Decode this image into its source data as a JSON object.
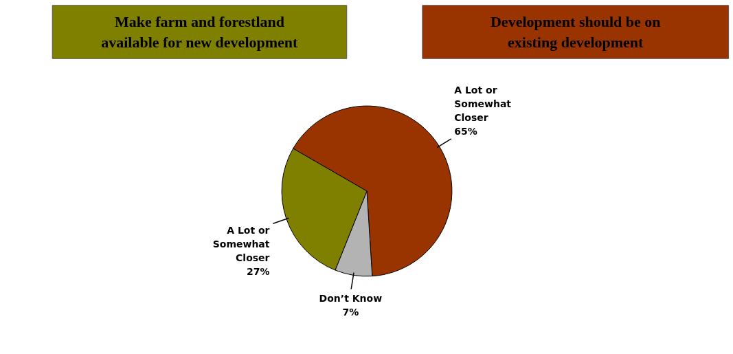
{
  "chart_data": {
    "type": "pie",
    "categories": [
      "A Lot or Somewhat Closer",
      "Don’t Know",
      "A Lot or Somewhat Closer"
    ],
    "values": [
      65,
      7,
      27
    ],
    "value_labels": [
      "65%",
      "7%",
      "27%"
    ],
    "colors": [
      "#993300",
      "#b3b3b3",
      "#808000"
    ],
    "annotations": [
      "Make farm and forestland available for new development",
      "Development should be on existing development"
    ]
  }
}
